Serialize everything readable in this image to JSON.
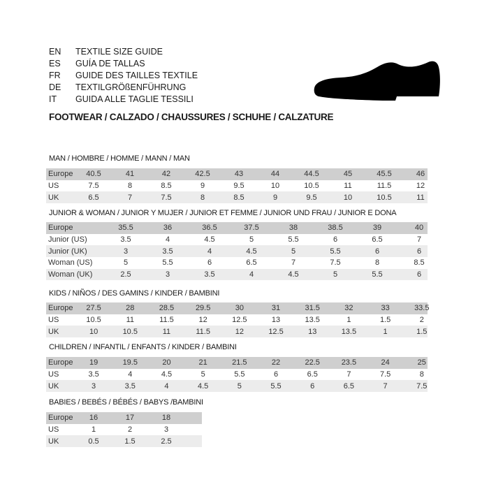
{
  "languages": [
    {
      "code": "EN",
      "title": "TEXTILE SIZE GUIDE"
    },
    {
      "code": "ES",
      "title": "GUÍA DE TALLAS"
    },
    {
      "code": "FR",
      "title": "GUIDE DES TAILLES TEXTILE"
    },
    {
      "code": "DE",
      "title": "TEXTILGRÖßENFÜHRUNG"
    },
    {
      "code": "IT",
      "title": "GUIDA ALLE TAGLIE TESSILI"
    }
  ],
  "category": "FOOTWEAR / CALZADO / CHAUSSURES / SCHUHE / CALZATURE",
  "icon": "shoe-icon",
  "colors": {
    "header_row": "#cfcfcf",
    "alt_row": "#ececec",
    "shoe": "#000000"
  },
  "tables": [
    {
      "title": "MAN / HOMBRE / HOMME / MANN / MAN",
      "rows": [
        {
          "label": "Europe",
          "values": [
            "40.5",
            "41",
            "42",
            "42.5",
            "43",
            "44",
            "44.5",
            "45",
            "45.5",
            "46"
          ]
        },
        {
          "label": "US",
          "values": [
            "7.5",
            "8",
            "8.5",
            "9",
            "9.5",
            "10",
            "10.5",
            "11",
            "11.5",
            "12"
          ]
        },
        {
          "label": "UK",
          "values": [
            "6.5",
            "7",
            "7.5",
            "8",
            "8.5",
            "9",
            "9.5",
            "10",
            "10.5",
            "11"
          ]
        }
      ]
    },
    {
      "title": "JUNIOR & WOMAN / JUNIOR Y MUJER / JUNIOR ET FEMME / JUNIOR UND FRAU / JUNIOR E DONA",
      "rows": [
        {
          "label": "Europe",
          "values": [
            "35.5",
            "36",
            "36.5",
            "37.5",
            "38",
            "38.5",
            "39",
            "40"
          ]
        },
        {
          "label": "Junior (US)",
          "values": [
            "3.5",
            "4",
            "4.5",
            "5",
            "5.5",
            "6",
            "6.5",
            "7"
          ]
        },
        {
          "label": "Junior (UK)",
          "values": [
            "3",
            "3.5",
            "4",
            "4.5",
            "5",
            "5.5",
            "6",
            "6"
          ]
        },
        {
          "label": "Woman (US)",
          "values": [
            "5",
            "5.5",
            "6",
            "6.5",
            "7",
            "7.5",
            "8",
            "8.5"
          ]
        },
        {
          "label": "Woman (UK)",
          "values": [
            "2.5",
            "3",
            "3.5",
            "4",
            "4.5",
            "5",
            "5.5",
            "6"
          ]
        }
      ]
    },
    {
      "title": "KIDS / NIÑOS / DES GAMINS / KINDER / BAMBINI",
      "rows": [
        {
          "label": "Europe",
          "values": [
            "27.5",
            "28",
            "28.5",
            "29.5",
            "30",
            "31",
            "31.5",
            "32",
            "33",
            "33.5"
          ]
        },
        {
          "label": "US",
          "values": [
            "10.5",
            "11",
            "11.5",
            "12",
            "12.5",
            "13",
            "13.5",
            "1",
            "1.5",
            "2"
          ]
        },
        {
          "label": "UK",
          "values": [
            "10",
            "10.5",
            "11",
            "11.5",
            "12",
            "12.5",
            "13",
            "13.5",
            "1",
            "1.5"
          ]
        }
      ]
    },
    {
      "title": "CHILDREN / INFANTIL / ENFANTS / KINDER / BAMBINI",
      "rows": [
        {
          "label": "Europe",
          "values": [
            "19",
            "19.5",
            "20",
            "21",
            "21.5",
            "22",
            "22.5",
            "23.5",
            "24",
            "25"
          ]
        },
        {
          "label": "US",
          "values": [
            "3.5",
            "4",
            "4.5",
            "5",
            "5.5",
            "6",
            "6.5",
            "7",
            "7.5",
            "8"
          ]
        },
        {
          "label": "UK",
          "values": [
            "3",
            "3.5",
            "4",
            "4.5",
            "5",
            "5.5",
            "6",
            "6.5",
            "7",
            "7.5"
          ]
        }
      ]
    },
    {
      "title": "BABIES  / BEBÉS / BÉBÉS / BABYS /BAMBINI",
      "rows": [
        {
          "label": "Europe",
          "values": [
            "16",
            "17",
            "18"
          ]
        },
        {
          "label": "US",
          "values": [
            "1",
            "2",
            "3"
          ]
        },
        {
          "label": "UK",
          "values": [
            "0.5",
            "1.5",
            "2.5"
          ]
        }
      ]
    }
  ]
}
